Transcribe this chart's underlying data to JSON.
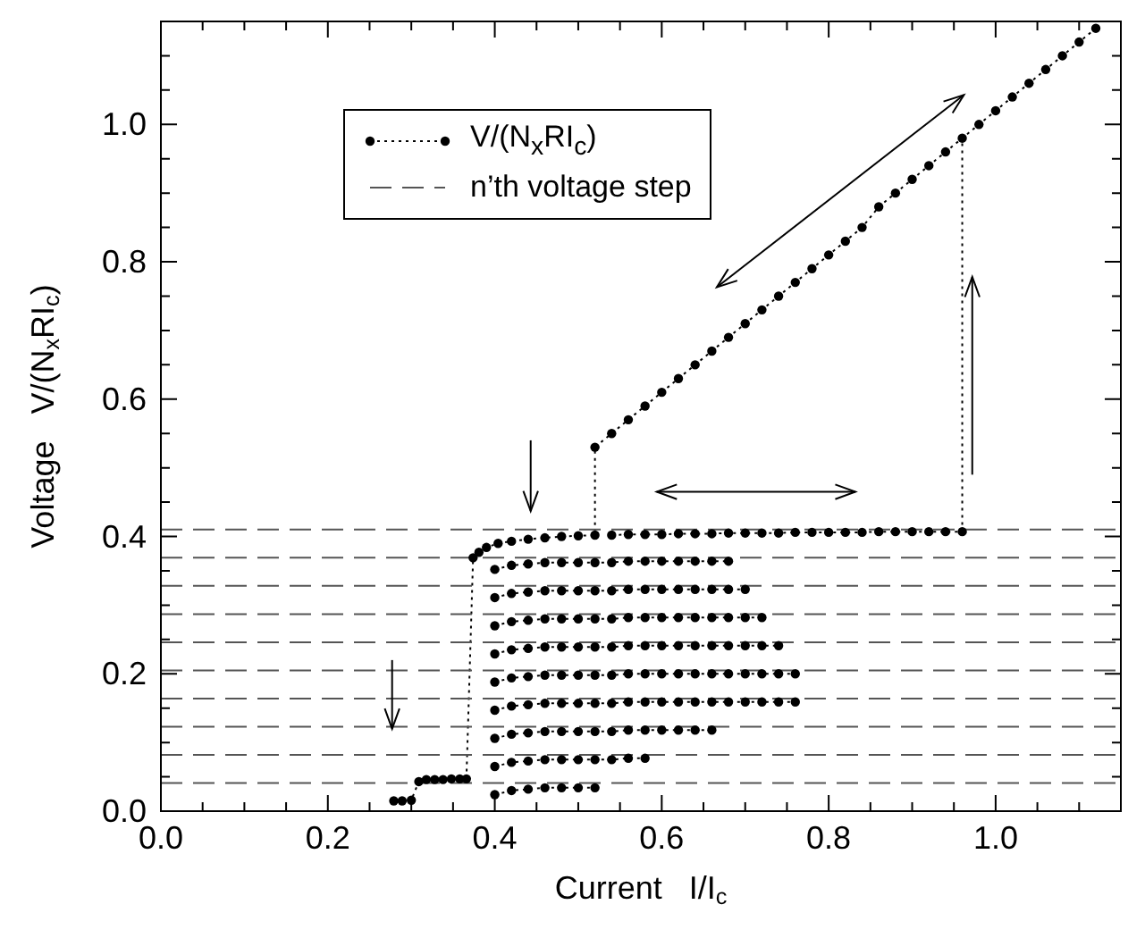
{
  "chart_data": {
    "type": "line",
    "xlabel": "Current   I/I$_{c}$",
    "ylabel": "Voltage   V/(N$_{x}$RI$_{c}$)",
    "xlim": [
      0,
      1.15
    ],
    "ylim": [
      0,
      1.15
    ],
    "xticks": [
      {
        "value": 0,
        "label": "0.0"
      },
      {
        "value": 0.05,
        "label": null
      },
      {
        "value": 0.1,
        "label": null
      },
      {
        "value": 0.15,
        "label": null
      },
      {
        "value": 0.2,
        "label": "0.2"
      },
      {
        "value": 0.25,
        "label": null
      },
      {
        "value": 0.3,
        "label": null
      },
      {
        "value": 0.35,
        "label": null
      },
      {
        "value": 0.4,
        "label": "0.4"
      },
      {
        "value": 0.45,
        "label": null
      },
      {
        "value": 0.5,
        "label": null
      },
      {
        "value": 0.55,
        "label": null
      },
      {
        "value": 0.6,
        "label": "0.6"
      },
      {
        "value": 0.65,
        "label": null
      },
      {
        "value": 0.7,
        "label": null
      },
      {
        "value": 0.75,
        "label": null
      },
      {
        "value": 0.8,
        "label": "0.8"
      },
      {
        "value": 0.85,
        "label": null
      },
      {
        "value": 0.9,
        "label": null
      },
      {
        "value": 0.95,
        "label": null
      },
      {
        "value": 1,
        "label": "1.0"
      },
      {
        "value": 1.05,
        "label": null
      },
      {
        "value": 1.1,
        "label": null
      }
    ],
    "yticks": [
      {
        "value": 0,
        "label": "0.0"
      },
      {
        "value": 0.05,
        "label": null
      },
      {
        "value": 0.1,
        "label": null
      },
      {
        "value": 0.15,
        "label": null
      },
      {
        "value": 0.2,
        "label": "0.2"
      },
      {
        "value": 0.25,
        "label": null
      },
      {
        "value": 0.3,
        "label": null
      },
      {
        "value": 0.35,
        "label": null
      },
      {
        "value": 0.4,
        "label": "0.4"
      },
      {
        "value": 0.45,
        "label": null
      },
      {
        "value": 0.5,
        "label": null
      },
      {
        "value": 0.55,
        "label": null
      },
      {
        "value": 0.6,
        "label": "0.6"
      },
      {
        "value": 0.65,
        "label": null
      },
      {
        "value": 0.7,
        "label": null
      },
      {
        "value": 0.75,
        "label": null
      },
      {
        "value": 0.8,
        "label": "0.8"
      },
      {
        "value": 0.85,
        "label": null
      },
      {
        "value": 0.9,
        "label": null
      },
      {
        "value": 0.95,
        "label": null
      },
      {
        "value": 1,
        "label": "1.0"
      },
      {
        "value": 1.05,
        "label": null
      },
      {
        "value": 1.1,
        "label": null
      }
    ],
    "legend": "top left",
    "series": [
      {
        "name": "V/(N$_{x}$RI$_{c}$)",
        "color": "#000000",
        "marker": "circle",
        "line_style": "dotted",
        "x": [
          0.279,
          0.289,
          0.3,
          0.309,
          0.318,
          0.328,
          0.338,
          0.348,
          0.358,
          0.366,
          0.374,
          0.381,
          0.39,
          0.404,
          0.42,
          0.44,
          0.46,
          0.48,
          0.5,
          0.52,
          0.52,
          0.54,
          0.56,
          0.58,
          0.6,
          0.62,
          0.64,
          0.66,
          0.68,
          0.7,
          0.72,
          0.74,
          0.76,
          0.78,
          0.8,
          0.82,
          0.84,
          0.86,
          0.88,
          0.9,
          0.92,
          0.94,
          0.98,
          1,
          1.02,
          1.04,
          1.06,
          1.08,
          1.1,
          1.12
        ],
        "values": [
          0.015,
          0.015,
          0.016,
          0.043,
          0.046,
          0.046,
          0.046,
          0.047,
          0.047,
          0.047,
          0.369,
          0.377,
          0.384,
          0.39,
          0.393,
          0.396,
          0.398,
          0.4,
          0.401,
          0.402,
          0.53,
          0.55,
          0.57,
          0.59,
          0.61,
          0.63,
          0.65,
          0.67,
          0.69,
          0.71,
          0.73,
          0.75,
          0.77,
          0.79,
          0.81,
          0.83,
          0.85,
          0.88,
          0.9,
          0.92,
          0.94,
          0.96,
          1,
          1.02,
          1.04,
          1.06,
          1.08,
          1.1,
          1.12,
          1.14
        ]
      },
      {
        "color": "#000000",
        "marker": "circle",
        "line_style": "dotted",
        "x": [
          0.54,
          0.56,
          0.58,
          0.6,
          0.62,
          0.64,
          0.66,
          0.68,
          0.7,
          0.72,
          0.74,
          0.76,
          0.78,
          0.8,
          0.82,
          0.84,
          0.86,
          0.88,
          0.9,
          0.92,
          0.94,
          0.96,
          0.96
        ],
        "values": [
          0.402,
          0.403,
          0.403,
          0.403,
          0.404,
          0.404,
          0.404,
          0.405,
          0.405,
          0.405,
          0.405,
          0.406,
          0.406,
          0.406,
          0.406,
          0.406,
          0.407,
          0.407,
          0.407,
          0.407,
          0.407,
          0.407,
          0.98
        ]
      },
      {
        "color": "#000000",
        "marker": "circle",
        "line_style": "dotted",
        "x": [
          0.4,
          0.42,
          0.44,
          0.46,
          0.48,
          0.5,
          0.52
        ],
        "values": [
          0.024,
          0.03,
          0.032,
          0.034,
          0.034,
          0.034,
          0.034
        ]
      },
      {
        "color": "#000000",
        "marker": "circle",
        "line_style": "dotted",
        "x": [
          0.4,
          0.42,
          0.44,
          0.46,
          0.48,
          0.5,
          0.52,
          0.54,
          0.56,
          0.58
        ],
        "values": [
          0.065,
          0.071,
          0.073,
          0.075,
          0.075,
          0.075,
          0.075,
          0.075,
          0.077,
          0.077
        ]
      },
      {
        "color": "#000000",
        "marker": "circle",
        "line_style": "dotted",
        "x": [
          0.4,
          0.42,
          0.44,
          0.46,
          0.48,
          0.5,
          0.52,
          0.54,
          0.56,
          0.58,
          0.6,
          0.62,
          0.64,
          0.66
        ],
        "values": [
          0.106,
          0.112,
          0.114,
          0.116,
          0.116,
          0.116,
          0.116,
          0.116,
          0.118,
          0.118,
          0.118,
          0.118,
          0.118,
          0.118
        ]
      },
      {
        "color": "#000000",
        "marker": "circle",
        "line_style": "dotted",
        "x": [
          0.4,
          0.42,
          0.44,
          0.46,
          0.48,
          0.5,
          0.52,
          0.54,
          0.56,
          0.58,
          0.6,
          0.62,
          0.64,
          0.66,
          0.68,
          0.7,
          0.72,
          0.74,
          0.76
        ],
        "values": [
          0.147,
          0.153,
          0.155,
          0.157,
          0.157,
          0.157,
          0.157,
          0.157,
          0.159,
          0.159,
          0.159,
          0.159,
          0.159,
          0.159,
          0.159,
          0.159,
          0.159,
          0.159,
          0.159
        ]
      },
      {
        "color": "#000000",
        "marker": "circle",
        "line_style": "dotted",
        "x": [
          0.4,
          0.42,
          0.44,
          0.46,
          0.48,
          0.5,
          0.52,
          0.54,
          0.56,
          0.58,
          0.6,
          0.62,
          0.64,
          0.66,
          0.68,
          0.7,
          0.72,
          0.74,
          0.76
        ],
        "values": [
          0.188,
          0.194,
          0.196,
          0.198,
          0.198,
          0.198,
          0.198,
          0.198,
          0.2,
          0.2,
          0.2,
          0.2,
          0.2,
          0.2,
          0.2,
          0.2,
          0.2,
          0.2,
          0.2
        ]
      },
      {
        "color": "#000000",
        "marker": "circle",
        "line_style": "dotted",
        "x": [
          0.4,
          0.42,
          0.44,
          0.46,
          0.48,
          0.5,
          0.52,
          0.54,
          0.56,
          0.58,
          0.6,
          0.62,
          0.64,
          0.66,
          0.68,
          0.7,
          0.72,
          0.74
        ],
        "values": [
          0.229,
          0.235,
          0.237,
          0.239,
          0.239,
          0.239,
          0.239,
          0.239,
          0.241,
          0.241,
          0.241,
          0.241,
          0.241,
          0.241,
          0.241,
          0.241,
          0.241,
          0.241
        ]
      },
      {
        "color": "#000000",
        "marker": "circle",
        "line_style": "dotted",
        "x": [
          0.4,
          0.42,
          0.44,
          0.46,
          0.48,
          0.5,
          0.52,
          0.54,
          0.56,
          0.58,
          0.6,
          0.62,
          0.64,
          0.66,
          0.68,
          0.7,
          0.72
        ],
        "values": [
          0.27,
          0.276,
          0.278,
          0.28,
          0.28,
          0.28,
          0.28,
          0.28,
          0.282,
          0.282,
          0.282,
          0.282,
          0.282,
          0.282,
          0.282,
          0.282,
          0.282
        ]
      },
      {
        "color": "#000000",
        "marker": "circle",
        "line_style": "dotted",
        "x": [
          0.4,
          0.42,
          0.44,
          0.46,
          0.48,
          0.5,
          0.52,
          0.54,
          0.56,
          0.58,
          0.6,
          0.62,
          0.64,
          0.66,
          0.68,
          0.7
        ],
        "values": [
          0.311,
          0.317,
          0.319,
          0.321,
          0.321,
          0.321,
          0.321,
          0.321,
          0.323,
          0.323,
          0.323,
          0.323,
          0.323,
          0.323,
          0.323,
          0.323
        ]
      },
      {
        "color": "#000000",
        "marker": "circle",
        "line_style": "dotted",
        "x": [
          0.4,
          0.42,
          0.44,
          0.46,
          0.48,
          0.5,
          0.52,
          0.54,
          0.56,
          0.58,
          0.6,
          0.62,
          0.64,
          0.66,
          0.68
        ],
        "values": [
          0.352,
          0.358,
          0.36,
          0.362,
          0.362,
          0.362,
          0.362,
          0.362,
          0.364,
          0.364,
          0.364,
          0.364,
          0.364,
          0.364,
          0.364
        ]
      },
      {
        "name": "n’th voltage step",
        "color": "#555555",
        "marker": "none",
        "line_style": "dashed",
        "x": [
          0,
          1.15
        ],
        "values": [
          0.041,
          0.041
        ]
      },
      {
        "color": "#555555",
        "marker": "none",
        "line_style": "dashed",
        "x": [
          0,
          1.15
        ],
        "values": [
          0.082,
          0.082
        ]
      },
      {
        "color": "#555555",
        "marker": "none",
        "line_style": "dashed",
        "x": [
          0,
          1.15
        ],
        "values": [
          0.123,
          0.123
        ]
      },
      {
        "color": "#555555",
        "marker": "none",
        "line_style": "dashed",
        "x": [
          0,
          1.15
        ],
        "values": [
          0.164,
          0.164
        ]
      },
      {
        "color": "#555555",
        "marker": "none",
        "line_style": "dashed",
        "x": [
          0,
          1.15
        ],
        "values": [
          0.205,
          0.205
        ]
      },
      {
        "color": "#555555",
        "marker": "none",
        "line_style": "dashed",
        "x": [
          0,
          1.15
        ],
        "values": [
          0.246,
          0.246
        ]
      },
      {
        "color": "#555555",
        "marker": "none",
        "line_style": "dashed",
        "x": [
          0,
          1.15
        ],
        "values": [
          0.287,
          0.287
        ]
      },
      {
        "color": "#555555",
        "marker": "none",
        "line_style": "dashed",
        "x": [
          0,
          1.15
        ],
        "values": [
          0.328,
          0.328
        ]
      },
      {
        "color": "#555555",
        "marker": "none",
        "line_style": "dashed",
        "x": [
          0,
          1.15
        ],
        "values": [
          0.369,
          0.369
        ]
      },
      {
        "color": "#555555",
        "marker": "none",
        "line_style": "dashed",
        "x": [
          0,
          1.15
        ],
        "values": [
          0.41,
          0.41
        ]
      }
    ]
  }
}
